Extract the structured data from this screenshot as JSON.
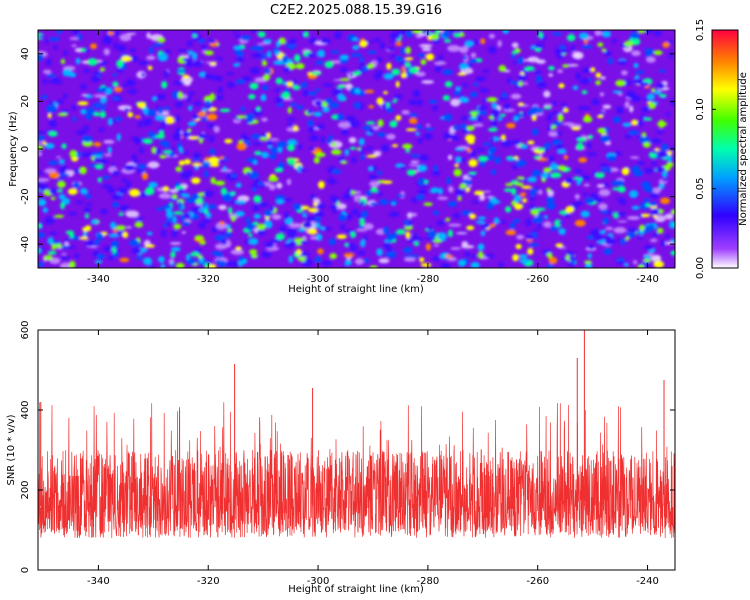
{
  "title": "C2E2.2025.088.15.39.G16",
  "chart_data": [
    {
      "type": "heatmap",
      "xlabel": "Height of straight line (km)",
      "ylabel": "Frequency (Hz)",
      "xlim": [
        -351,
        -235
      ],
      "ylim": [
        -50,
        50
      ],
      "xticks": [
        -340,
        -320,
        -300,
        -280,
        -260,
        -240
      ],
      "yticks": [
        -40,
        -20,
        0,
        20,
        40
      ],
      "colorbar": {
        "label": "Normalized spectral amplitude",
        "range": [
          0,
          0.15
        ],
        "ticks": [
          "0.00",
          "0.05",
          "0.10",
          "0.15"
        ],
        "colormap": [
          "#ffffff",
          "#8000ff",
          "#0000ff",
          "#00c0ff",
          "#00ff80",
          "#ffff00",
          "#ff8000",
          "#ff0000"
        ]
      },
      "grid": false
    },
    {
      "type": "line",
      "xlabel": "Height of straight line (km)",
      "ylabel": "SNR (10 * v/v)",
      "xlim": [
        -351,
        -235
      ],
      "ylim": [
        0,
        600
      ],
      "xticks": [
        -340,
        -320,
        -300,
        -280,
        -260,
        -240
      ],
      "yticks": [
        0,
        200,
        400,
        600
      ],
      "line_color": "#f03030",
      "baseline_mean": 160,
      "typical_range": [
        80,
        300
      ],
      "peaks": [
        {
          "x": -350.5,
          "y": 420
        },
        {
          "x": -315.2,
          "y": 515
        },
        {
          "x": -301.0,
          "y": 455
        },
        {
          "x": -251.5,
          "y": 600
        },
        {
          "x": -252.8,
          "y": 530
        },
        {
          "x": -237.0,
          "y": 475
        }
      ],
      "grid": false
    }
  ]
}
